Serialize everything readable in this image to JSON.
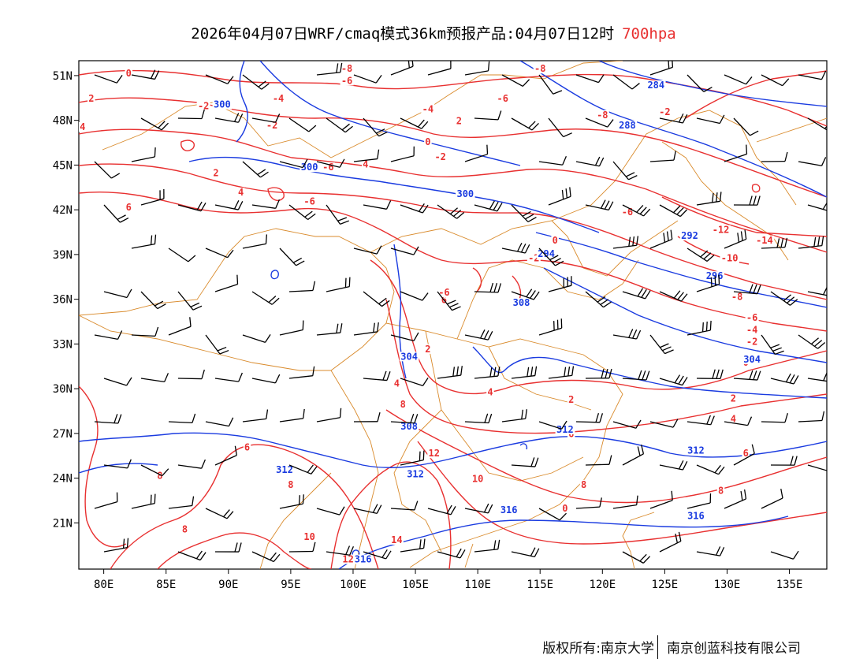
{
  "title": {
    "main": "2026年04月07日WRF/cmaq模式36km预报产品:04月07日12时",
    "level": "700hpa"
  },
  "footer": {
    "copyright_left": "版权所有:南京大学",
    "copyright_right": "南京创蓝科技有限公司"
  },
  "map": {
    "lon_labels": [
      "80E",
      "85E",
      "90E",
      "95E",
      "100E",
      "105E",
      "110E",
      "115E",
      "120E",
      "125E",
      "130E",
      "135E"
    ],
    "lat_labels": [
      "51N",
      "48N",
      "45N",
      "42N",
      "39N",
      "36N",
      "33N",
      "30N",
      "27N",
      "24N",
      "21N"
    ],
    "colors": {
      "temperature": "#e83030",
      "height": "#1a3be0",
      "boundary": "#d98a2b",
      "barb": "#000000"
    },
    "temperature_labels": [
      {
        "text": "0",
        "lon": 82.0,
        "lat": 51.0
      },
      {
        "text": "-6",
        "lon": 99.5,
        "lat": 50.5
      },
      {
        "text": "-8",
        "lon": 99.5,
        "lat": 51.3
      },
      {
        "text": "-8",
        "lon": 115.0,
        "lat": 51.3
      },
      {
        "text": "-4",
        "lon": 94.0,
        "lat": 49.3
      },
      {
        "text": "-2",
        "lon": 88.0,
        "lat": 48.8
      },
      {
        "text": "-2",
        "lon": 93.5,
        "lat": 47.5
      },
      {
        "text": "2",
        "lon": 79.0,
        "lat": 49.3
      },
      {
        "text": "4",
        "lon": 78.3,
        "lat": 47.4
      },
      {
        "text": "-4",
        "lon": 106.0,
        "lat": 48.6
      },
      {
        "text": "-6",
        "lon": 112.0,
        "lat": 49.3
      },
      {
        "text": "2",
        "lon": 108.5,
        "lat": 47.8
      },
      {
        "text": "-8",
        "lon": 120.0,
        "lat": 48.2
      },
      {
        "text": "-2",
        "lon": 125.0,
        "lat": 48.4
      },
      {
        "text": "0",
        "lon": 106.0,
        "lat": 46.4
      },
      {
        "text": "-2",
        "lon": 107.0,
        "lat": 45.4
      },
      {
        "text": "-6",
        "lon": 98.0,
        "lat": 44.7
      },
      {
        "text": "4",
        "lon": 101.0,
        "lat": 44.9
      },
      {
        "text": "2",
        "lon": 89.0,
        "lat": 44.3
      },
      {
        "text": "4",
        "lon": 91.0,
        "lat": 43.0
      },
      {
        "text": "-6",
        "lon": 96.5,
        "lat": 42.4
      },
      {
        "text": "6",
        "lon": 82.0,
        "lat": 42.0
      },
      {
        "text": "-6",
        "lon": 122.0,
        "lat": 41.7
      },
      {
        "text": "-12",
        "lon": 129.5,
        "lat": 40.5
      },
      {
        "text": "-14",
        "lon": 133.0,
        "lat": 39.8
      },
      {
        "text": "0",
        "lon": 116.2,
        "lat": 39.8
      },
      {
        "text": "-2",
        "lon": 114.5,
        "lat": 38.6
      },
      {
        "text": "-10",
        "lon": 130.2,
        "lat": 38.6
      },
      {
        "text": "-8",
        "lon": 130.8,
        "lat": 36.0
      },
      {
        "text": "-6",
        "lon": 132.0,
        "lat": 34.6
      },
      {
        "text": "-4",
        "lon": 132.0,
        "lat": 33.8
      },
      {
        "text": "-2",
        "lon": 132.0,
        "lat": 33.0
      },
      {
        "text": "0",
        "lon": 131.5,
        "lat": 31.6
      },
      {
        "text": "6",
        "lon": 107.3,
        "lat": 35.8
      },
      {
        "text": "-6",
        "lon": 107.3,
        "lat": 36.3
      },
      {
        "text": "2",
        "lon": 106.0,
        "lat": 32.5
      },
      {
        "text": "4",
        "lon": 103.5,
        "lat": 30.2
      },
      {
        "text": "8",
        "lon": 104.0,
        "lat": 28.8
      },
      {
        "text": "4",
        "lon": 111.0,
        "lat": 29.6
      },
      {
        "text": "2",
        "lon": 117.5,
        "lat": 29.1
      },
      {
        "text": "2",
        "lon": 130.5,
        "lat": 29.2
      },
      {
        "text": "4",
        "lon": 130.5,
        "lat": 27.8
      },
      {
        "text": "6",
        "lon": 117.5,
        "lat": 26.8
      },
      {
        "text": "6",
        "lon": 131.5,
        "lat": 25.5
      },
      {
        "text": "12",
        "lon": 106.5,
        "lat": 25.5
      },
      {
        "text": "8",
        "lon": 84.5,
        "lat": 24.0
      },
      {
        "text": "6",
        "lon": 91.5,
        "lat": 25.9
      },
      {
        "text": "8",
        "lon": 95.0,
        "lat": 23.4
      },
      {
        "text": "10",
        "lon": 110.0,
        "lat": 23.8
      },
      {
        "text": "8",
        "lon": 118.5,
        "lat": 23.4
      },
      {
        "text": "8",
        "lon": 129.5,
        "lat": 23.0
      },
      {
        "text": "0",
        "lon": 117.0,
        "lat": 21.8
      },
      {
        "text": "8",
        "lon": 86.5,
        "lat": 20.4
      },
      {
        "text": "10",
        "lon": 96.5,
        "lat": 19.9
      },
      {
        "text": "14",
        "lon": 103.5,
        "lat": 19.7
      },
      {
        "text": "12",
        "lon": 99.6,
        "lat": 18.4
      }
    ],
    "height_labels": [
      {
        "text": "300",
        "lon": 89.5,
        "lat": 48.9
      },
      {
        "text": "284",
        "lon": 124.3,
        "lat": 50.2
      },
      {
        "text": "288",
        "lon": 122.0,
        "lat": 47.5
      },
      {
        "text": "300",
        "lon": 96.5,
        "lat": 44.7
      },
      {
        "text": "300",
        "lon": 109.0,
        "lat": 42.9
      },
      {
        "text": "294",
        "lon": 115.5,
        "lat": 38.9
      },
      {
        "text": "292",
        "lon": 127.0,
        "lat": 40.1
      },
      {
        "text": "296",
        "lon": 129.0,
        "lat": 37.4
      },
      {
        "text": "308",
        "lon": 113.5,
        "lat": 35.6
      },
      {
        "text": "304",
        "lon": 104.5,
        "lat": 32.0
      },
      {
        "text": "304",
        "lon": 132.0,
        "lat": 31.8
      },
      {
        "text": "308",
        "lon": 104.5,
        "lat": 27.3
      },
      {
        "text": "312",
        "lon": 117.0,
        "lat": 27.1
      },
      {
        "text": "312",
        "lon": 127.5,
        "lat": 25.7
      },
      {
        "text": "312",
        "lon": 94.5,
        "lat": 24.4
      },
      {
        "text": "312",
        "lon": 105.0,
        "lat": 24.1
      },
      {
        "text": "316",
        "lon": 112.5,
        "lat": 21.7
      },
      {
        "text": "316",
        "lon": 127.5,
        "lat": 21.3
      },
      {
        "text": "316",
        "lon": 100.8,
        "lat": 18.4
      }
    ]
  }
}
